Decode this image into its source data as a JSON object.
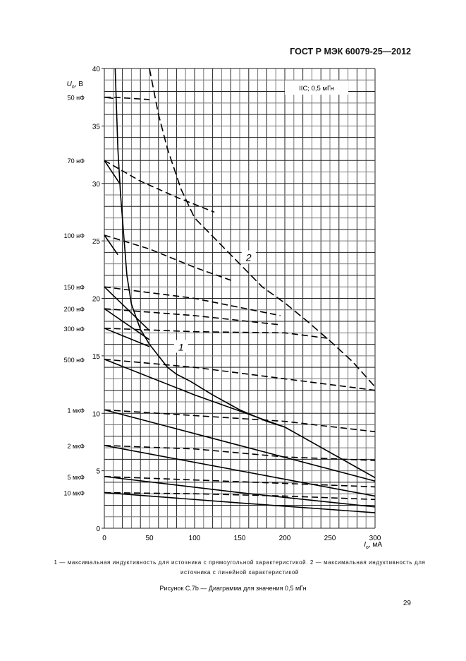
{
  "header": {
    "doc_id": "ГОСТ Р МЭК 60079-25—2012"
  },
  "chart_data": {
    "type": "line",
    "title": "IIC; 0,5 мГн",
    "ylabel_symbol": "U",
    "ylabel_sub": "o",
    "ylabel_unit": ", В",
    "xlabel_symbol": "I",
    "xlabel_sub": "o",
    "xlabel_unit": ", мА",
    "xlim": [
      0,
      300
    ],
    "ylim": [
      0,
      40
    ],
    "xticks": [
      0,
      50,
      100,
      150,
      200,
      250,
      300
    ],
    "yticks": [
      0,
      5,
      10,
      15,
      20,
      25,
      30,
      35,
      40
    ],
    "grid": true,
    "grid_x_step": 10,
    "grid_y_step": 1,
    "main_curves": [
      {
        "name": "1",
        "style": "solid",
        "points": [
          [
            12,
            40
          ],
          [
            15,
            33
          ],
          [
            18,
            29
          ],
          [
            21,
            26
          ],
          [
            25,
            22
          ],
          [
            30,
            19.5
          ],
          [
            40,
            17.3
          ],
          [
            50,
            16
          ],
          [
            60,
            15
          ],
          [
            70,
            14
          ],
          [
            80,
            13.4
          ],
          [
            95,
            12.8
          ],
          [
            120,
            11.6
          ],
          [
            150,
            10.3
          ],
          [
            180,
            9.3
          ],
          [
            200,
            8.8
          ]
        ]
      },
      {
        "name": "2",
        "style": "dashed",
        "points": [
          [
            50,
            40
          ],
          [
            60,
            36
          ],
          [
            70,
            33
          ],
          [
            85,
            29.5
          ],
          [
            100,
            27
          ],
          [
            125,
            25
          ],
          [
            150,
            23
          ],
          [
            175,
            21
          ],
          [
            200,
            19.6
          ],
          [
            225,
            18
          ],
          [
            250,
            16.3
          ],
          [
            275,
            14.5
          ],
          [
            300,
            12.3
          ]
        ]
      }
    ],
    "curve_labels": [
      {
        "text": "1",
        "x": 85,
        "y": 15.7
      },
      {
        "text": "2",
        "x": 160,
        "y": 23.5
      }
    ],
    "capacitance_series": [
      {
        "label": "50 нФ",
        "solid": [
          [
            0,
            37.5
          ],
          [
            10,
            37.4
          ]
        ],
        "dashed": [
          [
            0,
            37.5
          ],
          [
            10,
            37.5
          ],
          [
            50,
            37.3
          ]
        ]
      },
      {
        "label": "70 нФ",
        "solid": [
          [
            0,
            32
          ],
          [
            17,
            30
          ]
        ],
        "dashed": [
          [
            0,
            32
          ],
          [
            40,
            30.2
          ],
          [
            80,
            28.8
          ],
          [
            122,
            27.5
          ]
        ]
      },
      {
        "label": "100 нФ",
        "solid": [
          [
            0,
            25.5
          ],
          [
            15,
            23.8
          ]
        ],
        "dashed": [
          [
            0,
            25.5
          ],
          [
            50,
            24.3
          ],
          [
            100,
            22.7
          ],
          [
            143,
            21.5
          ]
        ]
      },
      {
        "label": "150 нФ",
        "solid": [
          [
            0,
            21
          ],
          [
            50,
            17.2
          ]
        ],
        "dashed": [
          [
            0,
            21
          ],
          [
            100,
            20
          ],
          [
            195,
            18.5
          ]
        ]
      },
      {
        "label": "200 нФ",
        "solid": [
          [
            0,
            19.1
          ],
          [
            50,
            16.4
          ]
        ],
        "dashed": [
          [
            0,
            19.1
          ],
          [
            100,
            18.5
          ],
          [
            195,
            17.7
          ]
        ]
      },
      {
        "label": "300 нФ",
        "solid": [
          [
            0,
            17.4
          ],
          [
            50,
            15.8
          ]
        ],
        "dashed": [
          [
            0,
            17.4
          ],
          [
            100,
            17.1
          ],
          [
            200,
            17
          ],
          [
            250,
            16.5
          ]
        ]
      },
      {
        "label": "500 нФ",
        "solid": [
          [
            0,
            14.7
          ],
          [
            100,
            11.6
          ],
          [
            200,
            8.8
          ],
          [
            300,
            4.4
          ]
        ],
        "dashed": [
          [
            0,
            14.7
          ],
          [
            100,
            14
          ],
          [
            200,
            13
          ],
          [
            300,
            12
          ]
        ]
      },
      {
        "label": "1 мкФ",
        "solid": [
          [
            0,
            10.3
          ],
          [
            150,
            7.2
          ],
          [
            300,
            4.1
          ]
        ],
        "dashed": [
          [
            0,
            10.3
          ],
          [
            100,
            9.8
          ],
          [
            200,
            9.3
          ],
          [
            300,
            8.4
          ]
        ]
      },
      {
        "label": "2 мкФ",
        "solid": [
          [
            0,
            7.2
          ],
          [
            150,
            5
          ],
          [
            300,
            2.8
          ]
        ],
        "dashed": [
          [
            0,
            7.2
          ],
          [
            100,
            6.9
          ],
          [
            200,
            6.2
          ],
          [
            300,
            5.9
          ]
        ]
      },
      {
        "label": "5 мкФ",
        "solid": [
          [
            0,
            4.5
          ],
          [
            150,
            3.1
          ],
          [
            300,
            1.85
          ]
        ],
        "dashed": [
          [
            0,
            4.5
          ],
          [
            100,
            4.2
          ],
          [
            200,
            3.9
          ],
          [
            300,
            3.6
          ]
        ]
      },
      {
        "label": "10 мкФ",
        "solid": [
          [
            0,
            3.1
          ],
          [
            150,
            2.2
          ],
          [
            300,
            1.35
          ]
        ],
        "dashed": [
          [
            0,
            3.1
          ],
          [
            100,
            3
          ],
          [
            200,
            2.8
          ],
          [
            300,
            2.5
          ]
        ]
      }
    ]
  },
  "caption": {
    "legend": "1 — максимальная индуктивность для источника с прямоугольной характеристикой. 2 — максимальная индуктивность для источника с линейной характеристикой",
    "figure_title": "Рисунок С.7b — Диаграмма для значения 0,5 мГн"
  },
  "page_number": "29"
}
